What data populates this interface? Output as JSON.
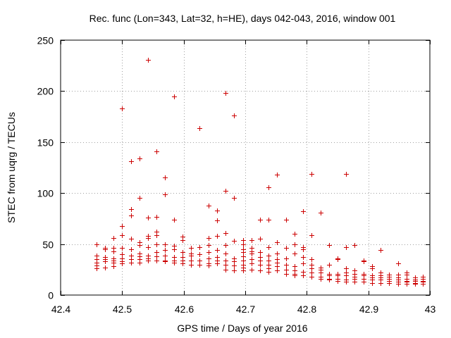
{
  "chart_data": {
    "type": "scatter",
    "title": "Rec. func (Lon=343, Lat=32, h=HE), days 042-043, 2016, window 001",
    "xlabel": "GPS time / Days of year 2016",
    "ylabel": "STEC from uqrg / TECUs",
    "xlim": [
      42.4,
      43
    ],
    "ylim": [
      0,
      250
    ],
    "xticks": [
      "42.4",
      "42.5",
      "42.6",
      "42.7",
      "42.8",
      "42.9",
      "43"
    ],
    "yticks": [
      "0",
      "50",
      "100",
      "150",
      "200",
      "250"
    ],
    "grid": true,
    "marker": "+",
    "marker_color": "#cc0000",
    "points": [
      [
        42.458,
        50
      ],
      [
        42.458,
        39
      ],
      [
        42.458,
        35
      ],
      [
        42.458,
        32
      ],
      [
        42.458,
        29
      ],
      [
        42.458,
        26
      ],
      [
        42.472,
        46
      ],
      [
        42.472,
        45
      ],
      [
        42.472,
        37
      ],
      [
        42.472,
        35
      ],
      [
        42.472,
        33
      ],
      [
        42.472,
        27
      ],
      [
        42.486,
        56
      ],
      [
        42.486,
        46
      ],
      [
        42.486,
        43
      ],
      [
        42.486,
        36
      ],
      [
        42.486,
        34
      ],
      [
        42.486,
        32
      ],
      [
        42.486,
        28
      ],
      [
        42.5,
        183
      ],
      [
        42.5,
        68
      ],
      [
        42.5,
        59
      ],
      [
        42.5,
        46
      ],
      [
        42.5,
        40
      ],
      [
        42.5,
        36
      ],
      [
        42.5,
        33
      ],
      [
        42.5,
        31
      ],
      [
        42.514,
        131
      ],
      [
        42.514,
        84
      ],
      [
        42.514,
        78
      ],
      [
        42.514,
        55
      ],
      [
        42.514,
        45
      ],
      [
        42.514,
        39
      ],
      [
        42.514,
        35
      ],
      [
        42.514,
        32
      ],
      [
        42.528,
        134
      ],
      [
        42.528,
        95
      ],
      [
        42.528,
        52
      ],
      [
        42.528,
        49
      ],
      [
        42.528,
        41
      ],
      [
        42.528,
        38
      ],
      [
        42.528,
        35
      ],
      [
        42.528,
        32
      ],
      [
        42.542,
        231
      ],
      [
        42.542,
        76
      ],
      [
        42.542,
        58
      ],
      [
        42.542,
        56
      ],
      [
        42.542,
        47
      ],
      [
        42.542,
        39
      ],
      [
        42.542,
        36
      ],
      [
        42.542,
        34
      ],
      [
        42.556,
        141
      ],
      [
        42.556,
        77
      ],
      [
        42.556,
        62
      ],
      [
        42.556,
        59
      ],
      [
        42.556,
        50
      ],
      [
        42.556,
        42
      ],
      [
        42.556,
        38
      ],
      [
        42.556,
        34
      ],
      [
        42.57,
        115
      ],
      [
        42.57,
        99
      ],
      [
        42.57,
        50
      ],
      [
        42.57,
        44
      ],
      [
        42.57,
        39
      ],
      [
        42.57,
        34
      ],
      [
        42.57,
        33
      ],
      [
        42.584,
        195
      ],
      [
        42.584,
        74
      ],
      [
        42.584,
        48
      ],
      [
        42.584,
        45
      ],
      [
        42.584,
        37
      ],
      [
        42.584,
        34
      ],
      [
        42.584,
        32
      ],
      [
        42.598,
        57
      ],
      [
        42.598,
        54
      ],
      [
        42.598,
        42
      ],
      [
        42.598,
        37
      ],
      [
        42.598,
        34
      ],
      [
        42.598,
        31
      ],
      [
        42.612,
        46
      ],
      [
        42.612,
        41
      ],
      [
        42.612,
        39
      ],
      [
        42.612,
        34
      ],
      [
        42.612,
        30
      ],
      [
        42.626,
        164
      ],
      [
        42.626,
        47
      ],
      [
        42.626,
        40
      ],
      [
        42.626,
        34
      ],
      [
        42.626,
        30
      ],
      [
        42.64,
        88
      ],
      [
        42.64,
        56
      ],
      [
        42.64,
        49
      ],
      [
        42.64,
        42
      ],
      [
        42.64,
        36
      ],
      [
        42.64,
        31
      ],
      [
        42.64,
        29
      ],
      [
        42.654,
        83
      ],
      [
        42.654,
        73
      ],
      [
        42.654,
        58
      ],
      [
        42.654,
        44
      ],
      [
        42.654,
        37
      ],
      [
        42.654,
        34
      ],
      [
        42.654,
        31
      ],
      [
        42.668,
        198
      ],
      [
        42.668,
        102
      ],
      [
        42.668,
        61
      ],
      [
        42.668,
        49
      ],
      [
        42.668,
        41
      ],
      [
        42.668,
        34
      ],
      [
        42.668,
        30
      ],
      [
        42.668,
        25
      ],
      [
        42.682,
        176
      ],
      [
        42.682,
        95
      ],
      [
        42.682,
        53
      ],
      [
        42.682,
        36
      ],
      [
        42.682,
        33
      ],
      [
        42.682,
        29
      ],
      [
        42.682,
        24
      ],
      [
        42.696,
        54
      ],
      [
        42.696,
        50
      ],
      [
        42.696,
        45
      ],
      [
        42.696,
        42
      ],
      [
        42.696,
        38
      ],
      [
        42.696,
        34
      ],
      [
        42.696,
        30
      ],
      [
        42.696,
        27
      ],
      [
        42.696,
        24
      ],
      [
        42.71,
        54
      ],
      [
        42.71,
        46
      ],
      [
        42.71,
        43
      ],
      [
        42.71,
        41
      ],
      [
        42.71,
        35
      ],
      [
        42.71,
        31
      ],
      [
        42.71,
        25
      ],
      [
        42.724,
        74
      ],
      [
        42.724,
        55
      ],
      [
        42.724,
        42
      ],
      [
        42.724,
        37
      ],
      [
        42.724,
        34
      ],
      [
        42.724,
        30
      ],
      [
        42.724,
        24
      ],
      [
        42.738,
        106
      ],
      [
        42.738,
        74
      ],
      [
        42.738,
        47
      ],
      [
        42.738,
        39
      ],
      [
        42.738,
        34
      ],
      [
        42.738,
        30
      ],
      [
        42.738,
        26
      ],
      [
        42.738,
        23
      ],
      [
        42.752,
        118
      ],
      [
        42.752,
        52
      ],
      [
        42.752,
        41
      ],
      [
        42.752,
        35
      ],
      [
        42.752,
        32
      ],
      [
        42.752,
        28
      ],
      [
        42.752,
        24
      ],
      [
        42.766,
        74
      ],
      [
        42.766,
        46
      ],
      [
        42.766,
        36
      ],
      [
        42.766,
        30
      ],
      [
        42.766,
        25
      ],
      [
        42.766,
        21
      ],
      [
        42.78,
        60
      ],
      [
        42.78,
        50
      ],
      [
        42.78,
        41
      ],
      [
        42.78,
        28
      ],
      [
        42.78,
        24
      ],
      [
        42.78,
        21
      ],
      [
        42.78,
        19
      ],
      [
        42.794,
        82
      ],
      [
        42.794,
        47
      ],
      [
        42.794,
        45
      ],
      [
        42.794,
        37
      ],
      [
        42.794,
        31
      ],
      [
        42.794,
        23
      ],
      [
        42.794,
        19
      ],
      [
        42.808,
        119
      ],
      [
        42.808,
        59
      ],
      [
        42.808,
        35
      ],
      [
        42.808,
        30
      ],
      [
        42.808,
        26
      ],
      [
        42.808,
        22
      ],
      [
        42.808,
        18
      ],
      [
        42.822,
        81
      ],
      [
        42.822,
        27
      ],
      [
        42.822,
        25
      ],
      [
        42.822,
        22
      ],
      [
        42.822,
        18
      ],
      [
        42.822,
        16
      ],
      [
        42.836,
        49
      ],
      [
        42.836,
        30
      ],
      [
        42.836,
        21
      ],
      [
        42.836,
        19
      ],
      [
        42.836,
        16
      ],
      [
        42.836,
        15
      ],
      [
        42.85,
        36
      ],
      [
        42.85,
        35
      ],
      [
        42.85,
        21
      ],
      [
        42.85,
        19
      ],
      [
        42.85,
        16
      ],
      [
        42.85,
        14
      ],
      [
        42.864,
        119
      ],
      [
        42.864,
        47
      ],
      [
        42.864,
        26
      ],
      [
        42.864,
        22
      ],
      [
        42.864,
        19
      ],
      [
        42.864,
        15
      ],
      [
        42.864,
        13
      ],
      [
        42.878,
        49
      ],
      [
        42.878,
        24
      ],
      [
        42.878,
        21
      ],
      [
        42.878,
        18
      ],
      [
        42.878,
        16
      ],
      [
        42.878,
        13
      ],
      [
        42.892,
        34
      ],
      [
        42.892,
        33
      ],
      [
        42.892,
        21
      ],
      [
        42.892,
        19
      ],
      [
        42.892,
        16
      ],
      [
        42.892,
        13
      ],
      [
        42.906,
        28
      ],
      [
        42.906,
        26
      ],
      [
        42.906,
        19
      ],
      [
        42.906,
        17
      ],
      [
        42.906,
        15
      ],
      [
        42.906,
        12
      ],
      [
        42.92,
        44
      ],
      [
        42.92,
        22
      ],
      [
        42.92,
        19
      ],
      [
        42.92,
        17
      ],
      [
        42.92,
        15
      ],
      [
        42.92,
        12
      ],
      [
        42.934,
        20
      ],
      [
        42.934,
        18
      ],
      [
        42.934,
        16
      ],
      [
        42.934,
        14
      ],
      [
        42.934,
        12
      ],
      [
        42.948,
        31
      ],
      [
        42.948,
        20
      ],
      [
        42.948,
        17
      ],
      [
        42.948,
        15
      ],
      [
        42.948,
        13
      ],
      [
        42.948,
        11
      ],
      [
        42.962,
        22
      ],
      [
        42.962,
        20
      ],
      [
        42.962,
        16
      ],
      [
        42.962,
        14
      ],
      [
        42.962,
        13
      ],
      [
        42.962,
        11
      ],
      [
        42.976,
        17
      ],
      [
        42.976,
        15
      ],
      [
        42.976,
        14
      ],
      [
        42.976,
        12
      ],
      [
        42.976,
        11
      ],
      [
        42.988,
        18
      ],
      [
        42.988,
        16
      ],
      [
        42.988,
        14
      ],
      [
        42.988,
        13
      ],
      [
        42.988,
        11
      ]
    ]
  }
}
